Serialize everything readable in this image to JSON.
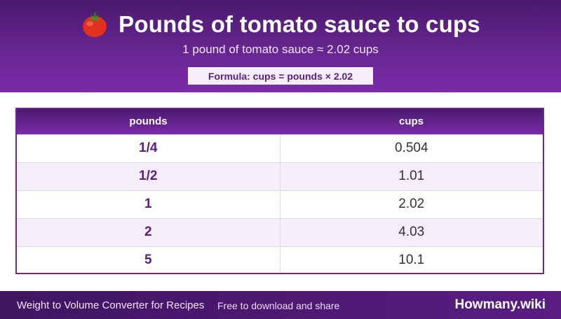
{
  "header": {
    "icon": "tomato-icon",
    "title": "Pounds of tomato sauce to cups",
    "subtitle": "1 pound of tomato sauce ≈ 2.02 cups",
    "formula": "Formula: cups = pounds × 2.02"
  },
  "table": {
    "headers": [
      "pounds",
      "cups"
    ],
    "rows": [
      [
        "1/4",
        "0.504"
      ],
      [
        "1/2",
        "1.01"
      ],
      [
        "1",
        "2.02"
      ],
      [
        "2",
        "4.03"
      ],
      [
        "5",
        "10.1"
      ]
    ]
  },
  "footer": {
    "left_text": "Weight to Volume Converter for Recipes",
    "middle_text": "Free to download and share",
    "brand": "Howmany.wiki"
  },
  "colors": {
    "accent": "#6a2794",
    "header_dark": "#4a1a6e",
    "row_alt": "#f4eefa"
  }
}
